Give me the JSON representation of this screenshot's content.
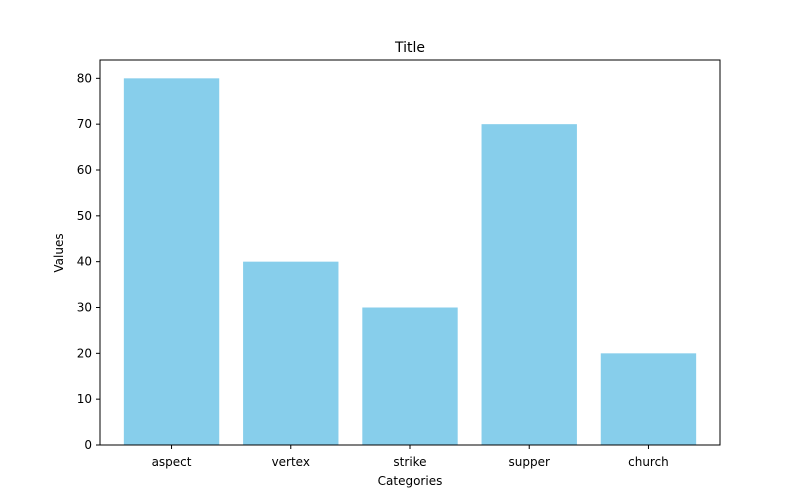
{
  "chart_data": {
    "type": "bar",
    "title": "Title",
    "xlabel": "Categories",
    "ylabel": "Values",
    "categories": [
      "aspect",
      "vertex",
      "strike",
      "supper",
      "church"
    ],
    "values": [
      80,
      40,
      30,
      70,
      20
    ],
    "ylim": [
      0,
      84
    ],
    "yticks": [
      0,
      10,
      20,
      30,
      40,
      50,
      60,
      70,
      80
    ],
    "grid": false,
    "legend": "none",
    "bar_color": "#87ceeb"
  }
}
